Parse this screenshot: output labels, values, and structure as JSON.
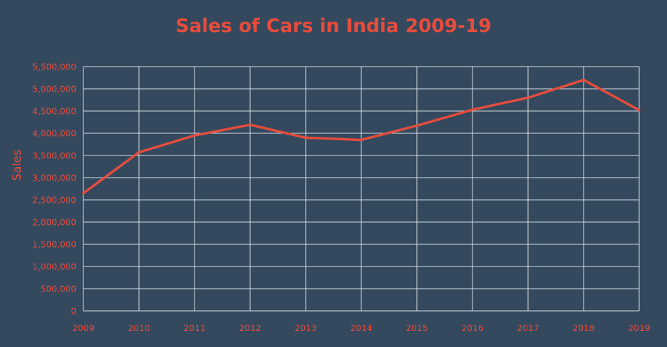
{
  "chart_data": {
    "type": "line",
    "title": "Sales of Cars in India 2009-19",
    "xlabel": "",
    "ylabel": "Sales",
    "x": [
      "2009",
      "2010",
      "2011",
      "2012",
      "2013",
      "2014",
      "2015",
      "2016",
      "2017",
      "2018",
      "2019"
    ],
    "series": [
      {
        "values": [
          2650000,
          3570000,
          3950000,
          4190000,
          3900000,
          3850000,
          4170000,
          4530000,
          4800000,
          5200000,
          4520000
        ]
      }
    ],
    "ylim": [
      0,
      5500000
    ],
    "yticks": [
      "0",
      "500,000",
      "1,000,000",
      "1,500,000",
      "2,000,000",
      "2,500,000",
      "3,000,000",
      "3,500,000",
      "4,000,000",
      "4,500,000",
      "5,000,000",
      "5,500,000"
    ],
    "ytick_values": [
      0,
      500000,
      1000000,
      1500000,
      2000000,
      2500000,
      3000000,
      3500000,
      4000000,
      4500000,
      5000000,
      5500000
    ],
    "grid": true,
    "legend": "none",
    "colors": {
      "background": "#34495e",
      "accent": "#e74c3c",
      "grid": "#d9dde2"
    }
  }
}
